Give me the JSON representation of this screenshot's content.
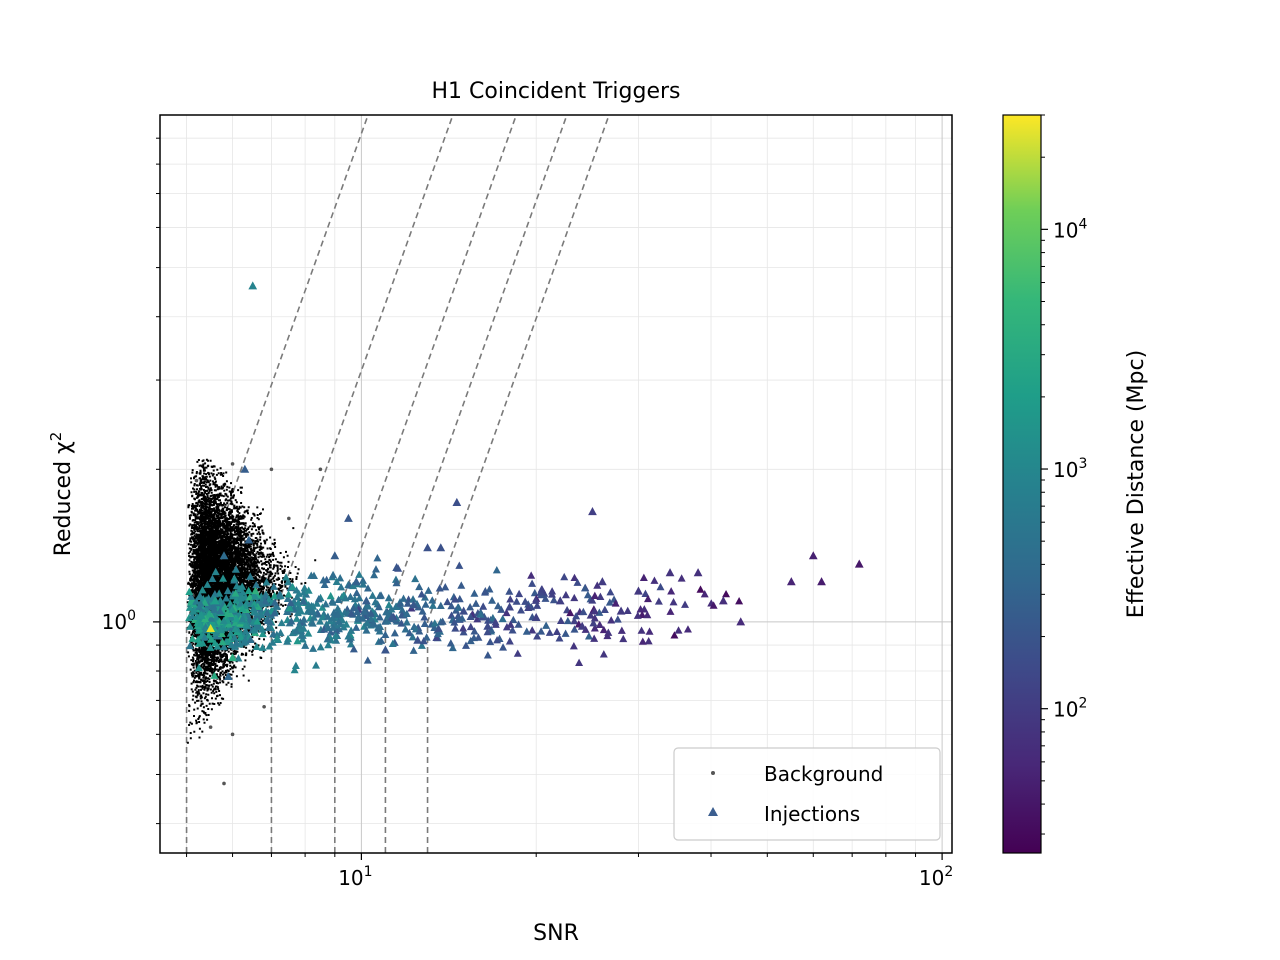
{
  "chart_data": {
    "type": "scatter",
    "title": "H1 Coincident Triggers",
    "xlabel": "SNR",
    "ylabel_main": "Reduced χ",
    "ylabel_sup": "2",
    "xscale": "log",
    "yscale": "log",
    "xlim": [
      4.5,
      104
    ],
    "ylim": [
      0.35,
      10
    ],
    "xticks": [
      {
        "base": "10",
        "exp": "1",
        "value": 10
      },
      {
        "base": "10",
        "exp": "2",
        "value": 100
      }
    ],
    "yticks": [
      {
        "base": "10",
        "exp": "0",
        "value": 1
      }
    ],
    "grid": true,
    "legend_position": "lower-right",
    "legend": [
      {
        "label": "Background",
        "marker": "point",
        "color": "#555555"
      },
      {
        "label": "Injections",
        "marker": "triangle",
        "color": "#3b5e8f"
      }
    ],
    "colorbar": {
      "label": "Effective Distance (Mpc)",
      "scale": "log",
      "range": [
        25,
        30000
      ],
      "ticks": [
        {
          "base": "10",
          "exp": "2",
          "value": 100
        },
        {
          "base": "10",
          "exp": "3",
          "value": 1000
        },
        {
          "base": "10",
          "exp": "4",
          "value": 10000
        }
      ],
      "colormap": "viridis"
    },
    "thresholds": [
      {
        "snr_min": 5.0
      },
      {
        "snr_min": 7.0
      },
      {
        "snr_min": 9.0
      },
      {
        "snr_min": 11.0
      },
      {
        "snr_min": 13.0
      }
    ],
    "series": [
      {
        "name": "Background",
        "marker": "point",
        "color": "#000000",
        "description_points": [
          {
            "x": 5.2,
            "y": 1.9
          },
          {
            "x": 6.0,
            "y": 2.05
          },
          {
            "x": 7.0,
            "y": 2.0
          },
          {
            "x": 7.5,
            "y": 1.6
          },
          {
            "x": 8.5,
            "y": 2.0
          },
          {
            "x": 5.5,
            "y": 0.62
          },
          {
            "x": 6.0,
            "y": 0.6
          },
          {
            "x": 6.8,
            "y": 0.68
          },
          {
            "x": 5.8,
            "y": 0.48
          },
          {
            "x": 8.0,
            "y": 0.9
          }
        ]
      },
      {
        "name": "Injections",
        "marker": "triangle",
        "points": [
          {
            "x": 6.5,
            "y": 4.6,
            "d": 900
          },
          {
            "x": 6.3,
            "y": 2.0,
            "d": 250
          },
          {
            "x": 6.4,
            "y": 1.45,
            "d": 300
          },
          {
            "x": 5.8,
            "y": 1.35,
            "d": 400
          },
          {
            "x": 5.6,
            "y": 1.1,
            "d": 2000
          },
          {
            "x": 5.3,
            "y": 1.03,
            "d": 1500
          },
          {
            "x": 5.5,
            "y": 0.97,
            "d": 25000
          },
          {
            "x": 6.0,
            "y": 0.85,
            "d": 3500
          },
          {
            "x": 5.9,
            "y": 0.78,
            "d": 350
          },
          {
            "x": 9.5,
            "y": 1.6,
            "d": 220
          },
          {
            "x": 9.0,
            "y": 1.35,
            "d": 250
          },
          {
            "x": 9.8,
            "y": 1.2,
            "d": 280
          },
          {
            "x": 10.2,
            "y": 1.1,
            "d": 250
          },
          {
            "x": 11.5,
            "y": 1.28,
            "d": 200
          },
          {
            "x": 12.3,
            "y": 1.08,
            "d": 220
          },
          {
            "x": 13.0,
            "y": 1.4,
            "d": 180
          },
          {
            "x": 13.7,
            "y": 1.4,
            "d": 180
          },
          {
            "x": 14.6,
            "y": 1.72,
            "d": 170
          },
          {
            "x": 11.0,
            "y": 0.88,
            "d": 200
          },
          {
            "x": 12.5,
            "y": 0.92,
            "d": 180
          },
          {
            "x": 15.0,
            "y": 1.05,
            "d": 160
          },
          {
            "x": 16.5,
            "y": 0.98,
            "d": 150
          },
          {
            "x": 18.0,
            "y": 1.07,
            "d": 130
          },
          {
            "x": 20.0,
            "y": 1.02,
            "d": 120
          },
          {
            "x": 22.0,
            "y": 1.1,
            "d": 110
          },
          {
            "x": 24.0,
            "y": 0.98,
            "d": 100
          },
          {
            "x": 25.0,
            "y": 1.65,
            "d": 110
          },
          {
            "x": 26.0,
            "y": 1.2,
            "d": 100
          },
          {
            "x": 28.0,
            "y": 1.05,
            "d": 95
          },
          {
            "x": 30.0,
            "y": 1.15,
            "d": 90
          },
          {
            "x": 34.0,
            "y": 1.25,
            "d": 80
          },
          {
            "x": 38.0,
            "y": 1.25,
            "d": 75
          },
          {
            "x": 42.0,
            "y": 1.1,
            "d": 70
          },
          {
            "x": 45.0,
            "y": 1.0,
            "d": 65
          },
          {
            "x": 55.0,
            "y": 1.2,
            "d": 55
          },
          {
            "x": 60.0,
            "y": 1.35,
            "d": 50
          },
          {
            "x": 62.0,
            "y": 1.2,
            "d": 45
          },
          {
            "x": 72.0,
            "y": 1.3,
            "d": 40
          }
        ]
      }
    ]
  }
}
